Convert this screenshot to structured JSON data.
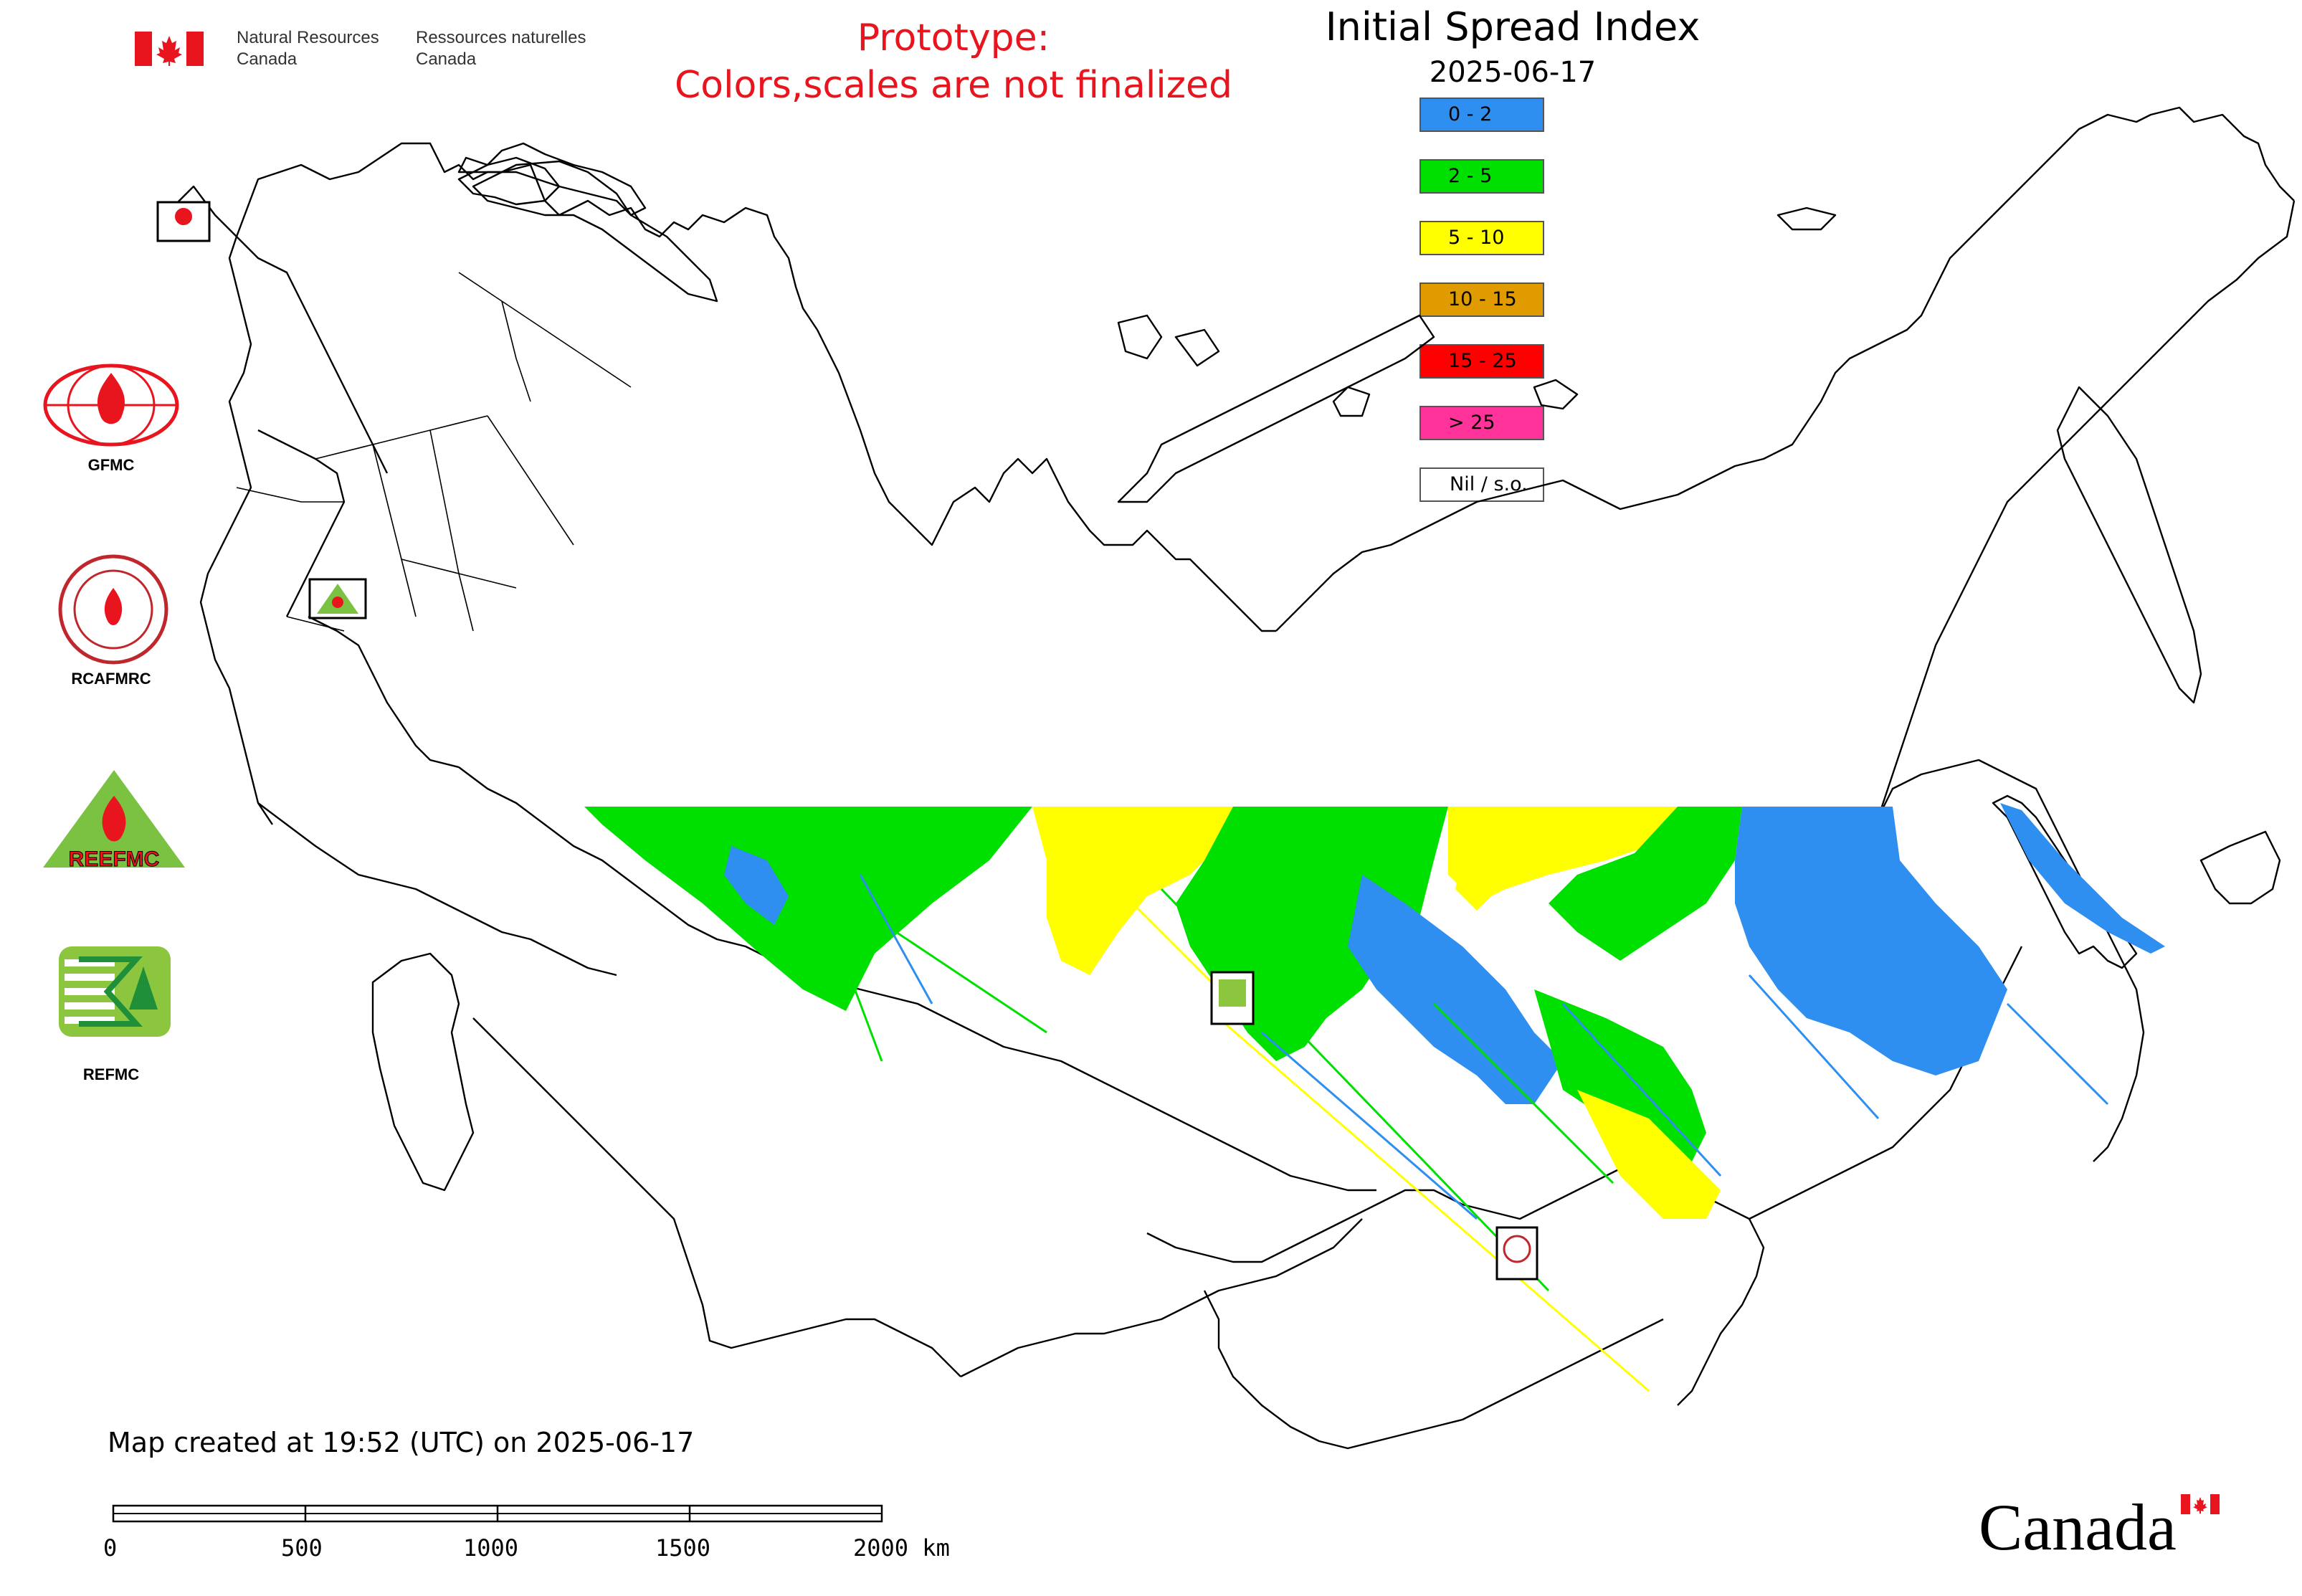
{
  "header": {
    "department_en_line1": "Natural Resources",
    "department_en_line2": "Canada",
    "department_fr_line1": "Ressources naturelles",
    "department_fr_line2": "Canada"
  },
  "notice": {
    "line1": "Prototype:",
    "line2": "Colors,scales are not finalized",
    "color": "#e8141e"
  },
  "map": {
    "title": "Initial Spread Index",
    "date": "2025-06-17",
    "created_text": "Map created at 19:52 (UTC) on 2025-06-17"
  },
  "legend": [
    {
      "label": "0 - 2",
      "color": "#2e8ff0"
    },
    {
      "label": "2 - 5",
      "color": "#00e000"
    },
    {
      "label": "5 - 10",
      "color": "#ffff00"
    },
    {
      "label": "10 - 15",
      "color": "#e09b00"
    },
    {
      "label": "15 - 25",
      "color": "#ff0000"
    },
    {
      "label": "> 25",
      "color": "#ff3399"
    },
    {
      "label": "Nil / s.o.",
      "color": "#ffffff"
    }
  ],
  "logos": [
    {
      "label": "GFMC",
      "icon": "gfmc-logo-icon"
    },
    {
      "label": "RCAFMRC",
      "icon": "rcafmrc-logo-icon"
    },
    {
      "label": "",
      "icon": "reefmc-logo-icon",
      "inner_text": "REEFMC"
    },
    {
      "label": "REFMC",
      "icon": "refmc-logo-icon"
    }
  ],
  "scale_bar": {
    "ticks": [
      "0",
      "500",
      "1000",
      "1500",
      "2000 km"
    ]
  },
  "footer": {
    "wordmark": "Canada"
  }
}
